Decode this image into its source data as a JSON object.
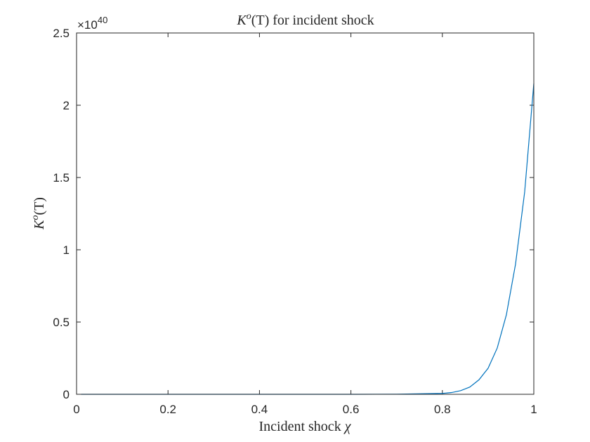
{
  "chart_data": {
    "type": "line",
    "title": {
      "math_base": "K",
      "math_sup": "o",
      "math_arg": "(T)",
      "text": " for incident shock"
    },
    "xlabel": {
      "text": "Incident shock ",
      "math": "χ"
    },
    "ylabel": {
      "math_base": "K",
      "math_sup": "o",
      "math_arg": "(T)"
    },
    "y_multiplier": {
      "prefix": "×10",
      "exponent": "40"
    },
    "xlim": [
      0,
      1
    ],
    "ylim": [
      0,
      2.5
    ],
    "x_ticks": [
      "0",
      "0.2",
      "0.4",
      "0.6",
      "0.8",
      "1"
    ],
    "y_ticks": [
      "0",
      "0.5",
      "1",
      "1.5",
      "2",
      "2.5"
    ],
    "x_tick_values": [
      0,
      0.2,
      0.4,
      0.6,
      0.8,
      1
    ],
    "y_tick_values": [
      0,
      0.5,
      1,
      1.5,
      2,
      2.5
    ],
    "grid": false,
    "colors": {
      "series": "#0072BD",
      "axes": "#262626"
    },
    "series": [
      {
        "x": [
          0.01,
          0.1,
          0.2,
          0.3,
          0.4,
          0.5,
          0.6,
          0.7,
          0.8,
          0.82,
          0.84,
          0.86,
          0.88,
          0.9,
          0.92,
          0.94,
          0.96,
          0.98,
          1.0
        ],
        "y": [
          0,
          0,
          0,
          0,
          0,
          0,
          0,
          0.001,
          0.006,
          0.012,
          0.025,
          0.05,
          0.1,
          0.18,
          0.32,
          0.55,
          0.9,
          1.4,
          2.15
        ]
      }
    ]
  }
}
